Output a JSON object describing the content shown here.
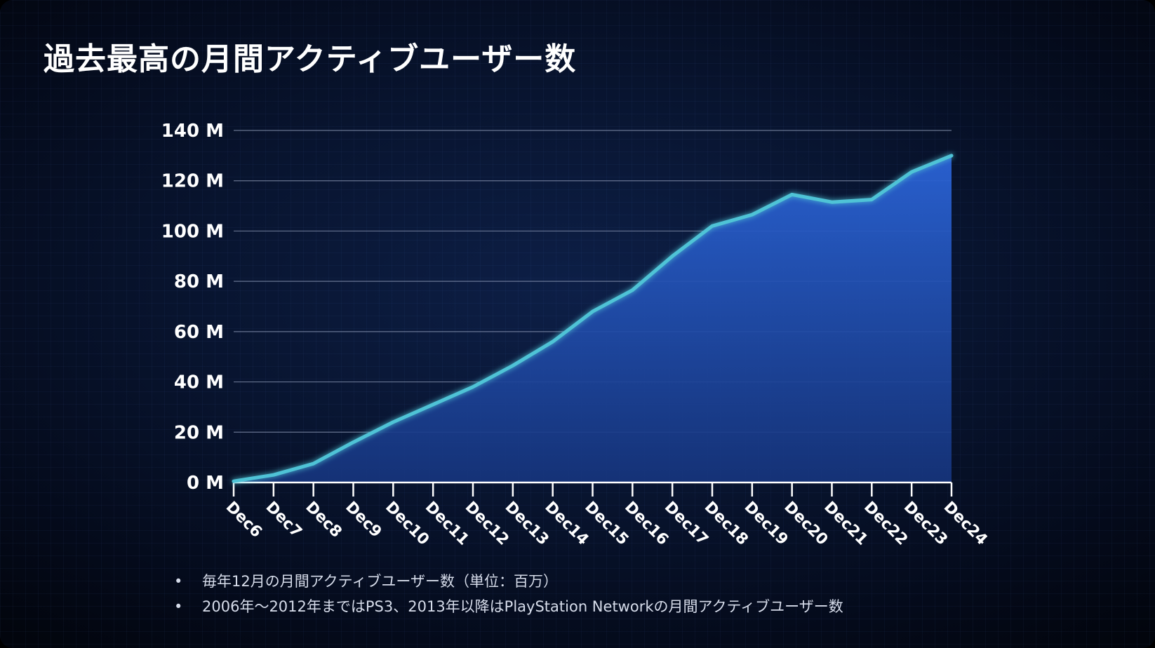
{
  "title": "過去最高の月間アクティブユーザー数",
  "notes": [
    "毎年12月の月間アクティブユーザー数（単位：百万）",
    "2006年～2012年まではPS3、2013年以降はPlayStation Networkの月間アクティブユーザー数"
  ],
  "colors": {
    "line": "#4fc3d6",
    "area_top": "#2557c4",
    "area_bottom": "#102a66",
    "gridline": "#8f9bb8",
    "text": "#ffffff"
  },
  "chart_data": {
    "type": "area",
    "categories": [
      "Dec6",
      "Dec7",
      "Dec8",
      "Dec9",
      "Dec10",
      "Dec11",
      "Dec12",
      "Dec13",
      "Dec14",
      "Dec15",
      "Dec16",
      "Dec17",
      "Dec18",
      "Dec19",
      "Dec20",
      "Dec21",
      "Dec22",
      "Dec23",
      "Dec24"
    ],
    "values": [
      0.5,
      3,
      7.5,
      16,
      24,
      31,
      38,
      46.5,
      56,
      68,
      76.5,
      90,
      102,
      106.5,
      114.5,
      111.5,
      112.5,
      123.5,
      130
    ],
    "y_ticks": [
      "0 M",
      "20 M",
      "40 M",
      "60 M",
      "80 M",
      "100 M",
      "120 M",
      "140 M"
    ],
    "ylim": [
      0,
      140
    ],
    "grid": true,
    "legend": "none"
  }
}
